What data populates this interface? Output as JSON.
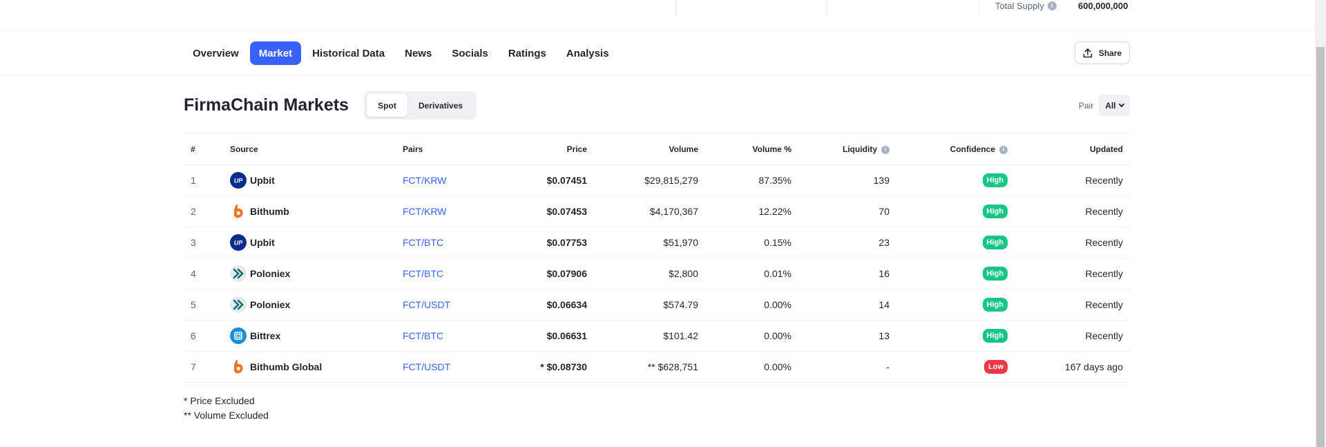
{
  "top": {
    "total_supply_label": "Total Supply",
    "total_supply_value": "600,000,000"
  },
  "tabs": [
    {
      "label": "Overview",
      "active": false
    },
    {
      "label": "Market",
      "active": true
    },
    {
      "label": "Historical Data",
      "active": false
    },
    {
      "label": "News",
      "active": false
    },
    {
      "label": "Socials",
      "active": false
    },
    {
      "label": "Ratings",
      "active": false
    },
    {
      "label": "Analysis",
      "active": false
    }
  ],
  "share_label": "Share",
  "markets": {
    "title": "FirmaChain Markets",
    "segment": [
      "Spot",
      "Derivatives"
    ],
    "pair_label": "Pair",
    "pair_value": "All"
  },
  "table": {
    "headers": {
      "num": "#",
      "source": "Source",
      "pairs": "Pairs",
      "price": "Price",
      "volume": "Volume",
      "volume_pct": "Volume %",
      "liquidity": "Liquidity",
      "confidence": "Confidence",
      "updated": "Updated"
    },
    "rows": [
      {
        "num": "1",
        "source": "Upbit",
        "logo": "upbit-logo-icon",
        "pair": "FCT/KRW",
        "price": "$0.07451",
        "volume": "$29,815,279",
        "volume_pct": "87.35%",
        "liquidity": "139",
        "confidence": "High",
        "updated": "Recently"
      },
      {
        "num": "2",
        "source": "Bithumb",
        "logo": "bithumb-logo-icon",
        "pair": "FCT/KRW",
        "price": "$0.07453",
        "volume": "$4,170,367",
        "volume_pct": "12.22%",
        "liquidity": "70",
        "confidence": "High",
        "updated": "Recently"
      },
      {
        "num": "3",
        "source": "Upbit",
        "logo": "upbit-logo-icon",
        "pair": "FCT/BTC",
        "price": "$0.07753",
        "volume": "$51,970",
        "volume_pct": "0.15%",
        "liquidity": "23",
        "confidence": "High",
        "updated": "Recently"
      },
      {
        "num": "4",
        "source": "Poloniex",
        "logo": "poloniex-logo-icon",
        "pair": "FCT/BTC",
        "price": "$0.07906",
        "volume": "$2,800",
        "volume_pct": "0.01%",
        "liquidity": "16",
        "confidence": "High",
        "updated": "Recently"
      },
      {
        "num": "5",
        "source": "Poloniex",
        "logo": "poloniex-logo-icon",
        "pair": "FCT/USDT",
        "price": "$0.06634",
        "volume": "$574.79",
        "volume_pct": "0.00%",
        "liquidity": "14",
        "confidence": "High",
        "updated": "Recently"
      },
      {
        "num": "6",
        "source": "Bittrex",
        "logo": "bittrex-logo-icon",
        "pair": "FCT/BTC",
        "price": "$0.06631",
        "volume": "$101.42",
        "volume_pct": "0.00%",
        "liquidity": "13",
        "confidence": "High",
        "updated": "Recently"
      },
      {
        "num": "7",
        "source": "Bithumb Global",
        "logo": "bithumb-logo-icon",
        "pair": "FCT/USDT",
        "price": "* $0.08730",
        "volume": "** $628,751",
        "volume_pct": "0.00%",
        "liquidity": "-",
        "confidence": "Low",
        "updated": "167 days ago"
      }
    ]
  },
  "notes": [
    "* Price Excluded",
    "** Volume Excluded"
  ],
  "colors": {
    "accent": "#3861fb",
    "high": "#16c784",
    "low": "#ea3943"
  }
}
